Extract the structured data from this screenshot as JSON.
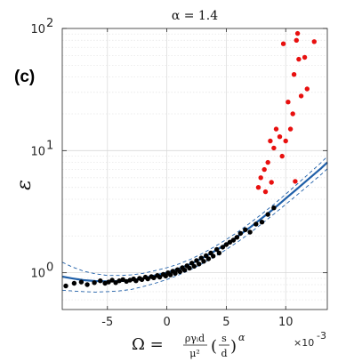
{
  "chart_data": {
    "type": "scatter",
    "title": "α = 1.4",
    "panel_label": "(c)",
    "ylabel": "ε",
    "xlabel": {
      "lhs": "Ω = ",
      "num": "ργᵢd",
      "den": "μ²",
      "frac2_num": "s",
      "frac2_den": "d",
      "exponent": "α"
    },
    "x_multiplier": "×10",
    "x_multiplier_exp": "-3",
    "xlim": [
      -0.0088,
      0.0135
    ],
    "ylim": [
      0.5,
      100
    ],
    "y_scale": "log",
    "grid": true,
    "x_ticks": [
      {
        "value": -0.005,
        "label": "-5"
      },
      {
        "value": 0,
        "label": "0"
      },
      {
        "value": 0.005,
        "label": "5"
      },
      {
        "value": 0.01,
        "label": "10"
      }
    ],
    "y_ticks": [
      {
        "value": 1,
        "label": "10",
        "sup": "0"
      },
      {
        "value": 10,
        "label": "10",
        "sup": "1"
      },
      {
        "value": 100,
        "label": "10",
        "sup": "2"
      }
    ],
    "fit_curve": {
      "color": "#1f5fa8",
      "x": [
        -0.0088,
        -0.008,
        -0.007,
        -0.006,
        -0.005,
        -0.004,
        -0.003,
        -0.002,
        -0.001,
        0,
        0.001,
        0.002,
        0.003,
        0.004,
        0.005,
        0.006,
        0.007,
        0.008,
        0.009,
        0.01,
        0.011,
        0.012,
        0.013,
        0.0135
      ],
      "y": [
        0.93,
        0.9,
        0.87,
        0.855,
        0.85,
        0.855,
        0.87,
        0.9,
        0.95,
        1.0,
        1.08,
        1.18,
        1.32,
        1.5,
        1.72,
        2.0,
        2.35,
        2.8,
        3.35,
        4.05,
        4.9,
        5.95,
        7.2,
        8.0
      ]
    },
    "conf_upper": {
      "color": "#1f5fa8",
      "x": [
        -0.0088,
        -0.008,
        -0.007,
        -0.006,
        -0.005,
        -0.004,
        -0.003,
        -0.002,
        -0.001,
        0,
        0.001,
        0.002,
        0.003,
        0.004,
        0.005,
        0.006,
        0.007,
        0.008,
        0.009,
        0.01,
        0.011,
        0.012,
        0.013,
        0.0135
      ],
      "y": [
        1.22,
        1.12,
        1.03,
        0.98,
        0.95,
        0.95,
        0.96,
        0.99,
        1.04,
        1.1,
        1.18,
        1.29,
        1.44,
        1.63,
        1.87,
        2.17,
        2.55,
        3.03,
        3.63,
        4.4,
        5.35,
        6.55,
        8.0,
        8.95
      ]
    },
    "conf_lower": {
      "color": "#1f5fa8",
      "x": [
        -0.0088,
        -0.008,
        -0.007,
        -0.006,
        -0.005,
        -0.004,
        -0.003,
        -0.002,
        -0.001,
        0,
        0.001,
        0.002,
        0.003,
        0.004,
        0.005,
        0.006,
        0.007,
        0.008,
        0.009,
        0.01,
        0.011,
        0.012,
        0.013,
        0.0135
      ],
      "y": [
        0.72,
        0.71,
        0.7,
        0.695,
        0.7,
        0.71,
        0.73,
        0.77,
        0.82,
        0.88,
        0.96,
        1.06,
        1.19,
        1.35,
        1.55,
        1.8,
        2.12,
        2.52,
        3.02,
        3.63,
        4.37,
        5.28,
        6.4,
        7.1
      ]
    },
    "series": [
      {
        "color": "#000000",
        "points": [
          [
            -0.0085,
            0.78
          ],
          [
            -0.0078,
            0.82
          ],
          [
            -0.0072,
            0.84
          ],
          [
            -0.0067,
            0.8
          ],
          [
            -0.0061,
            0.83
          ],
          [
            -0.0056,
            0.86
          ],
          [
            -0.0052,
            0.82
          ],
          [
            -0.0049,
            0.84
          ],
          [
            -0.0046,
            0.87
          ],
          [
            -0.0043,
            0.83
          ],
          [
            -0.004,
            0.86
          ],
          [
            -0.0037,
            0.88
          ],
          [
            -0.0034,
            0.85
          ],
          [
            -0.0031,
            0.87
          ],
          [
            -0.0028,
            0.89
          ],
          [
            -0.0026,
            0.86
          ],
          [
            -0.0023,
            0.9
          ],
          [
            -0.0021,
            0.88
          ],
          [
            -0.0018,
            0.92
          ],
          [
            -0.0016,
            0.89
          ],
          [
            -0.0013,
            0.93
          ],
          [
            -0.0011,
            0.91
          ],
          [
            -0.0008,
            0.95
          ],
          [
            -0.0006,
            0.92
          ],
          [
            -0.0003,
            0.97
          ],
          [
            -0.0001,
            0.94
          ],
          [
            0.0001,
            1.0
          ],
          [
            0.0003,
            0.96
          ],
          [
            0.0005,
            1.03
          ],
          [
            0.0007,
            0.99
          ],
          [
            0.0009,
            1.06
          ],
          [
            0.0011,
            1.02
          ],
          [
            0.0013,
            1.1
          ],
          [
            0.0015,
            1.05
          ],
          [
            0.0017,
            1.14
          ],
          [
            0.0019,
            1.09
          ],
          [
            0.0021,
            1.2
          ],
          [
            0.0023,
            1.13
          ],
          [
            0.0025,
            1.26
          ],
          [
            0.0027,
            1.18
          ],
          [
            0.0029,
            1.32
          ],
          [
            0.0031,
            1.24
          ],
          [
            0.0033,
            1.38
          ],
          [
            0.0035,
            1.3
          ],
          [
            0.0037,
            1.45
          ],
          [
            0.0039,
            1.37
          ],
          [
            0.0042,
            1.55
          ],
          [
            0.0044,
            1.45
          ],
          [
            0.0047,
            1.62
          ],
          [
            0.005,
            1.7
          ],
          [
            0.0053,
            1.78
          ],
          [
            0.0056,
            1.85
          ],
          [
            0.0059,
            1.95
          ],
          [
            0.0062,
            2.1
          ],
          [
            0.0066,
            2.25
          ],
          [
            0.007,
            2.15
          ],
          [
            0.0075,
            2.5
          ],
          [
            0.008,
            2.6
          ],
          [
            0.0085,
            3.0
          ],
          [
            0.009,
            3.4
          ]
        ]
      },
      {
        "color": "#e8100f",
        "points": [
          [
            0.0077,
            5.0
          ],
          [
            0.0079,
            6.0
          ],
          [
            0.0082,
            7.0
          ],
          [
            0.0083,
            4.6
          ],
          [
            0.0085,
            8.0
          ],
          [
            0.0087,
            12.0
          ],
          [
            0.0088,
            5.5
          ],
          [
            0.009,
            10.5
          ],
          [
            0.0092,
            15.0
          ],
          [
            0.0095,
            13.0
          ],
          [
            0.0097,
            9.0
          ],
          [
            0.0098,
            75.0
          ],
          [
            0.01,
            12.0
          ],
          [
            0.0102,
            25.0
          ],
          [
            0.0104,
            15.0
          ],
          [
            0.0106,
            20.0
          ],
          [
            0.0107,
            42.0
          ],
          [
            0.0108,
            5.6
          ],
          [
            0.0109,
            80.0
          ],
          [
            0.011,
            91.0
          ],
          [
            0.0111,
            56.0
          ],
          [
            0.0113,
            28.0
          ],
          [
            0.0116,
            58.0
          ],
          [
            0.0118,
            32.0
          ],
          [
            0.0124,
            78.0
          ]
        ]
      }
    ]
  }
}
